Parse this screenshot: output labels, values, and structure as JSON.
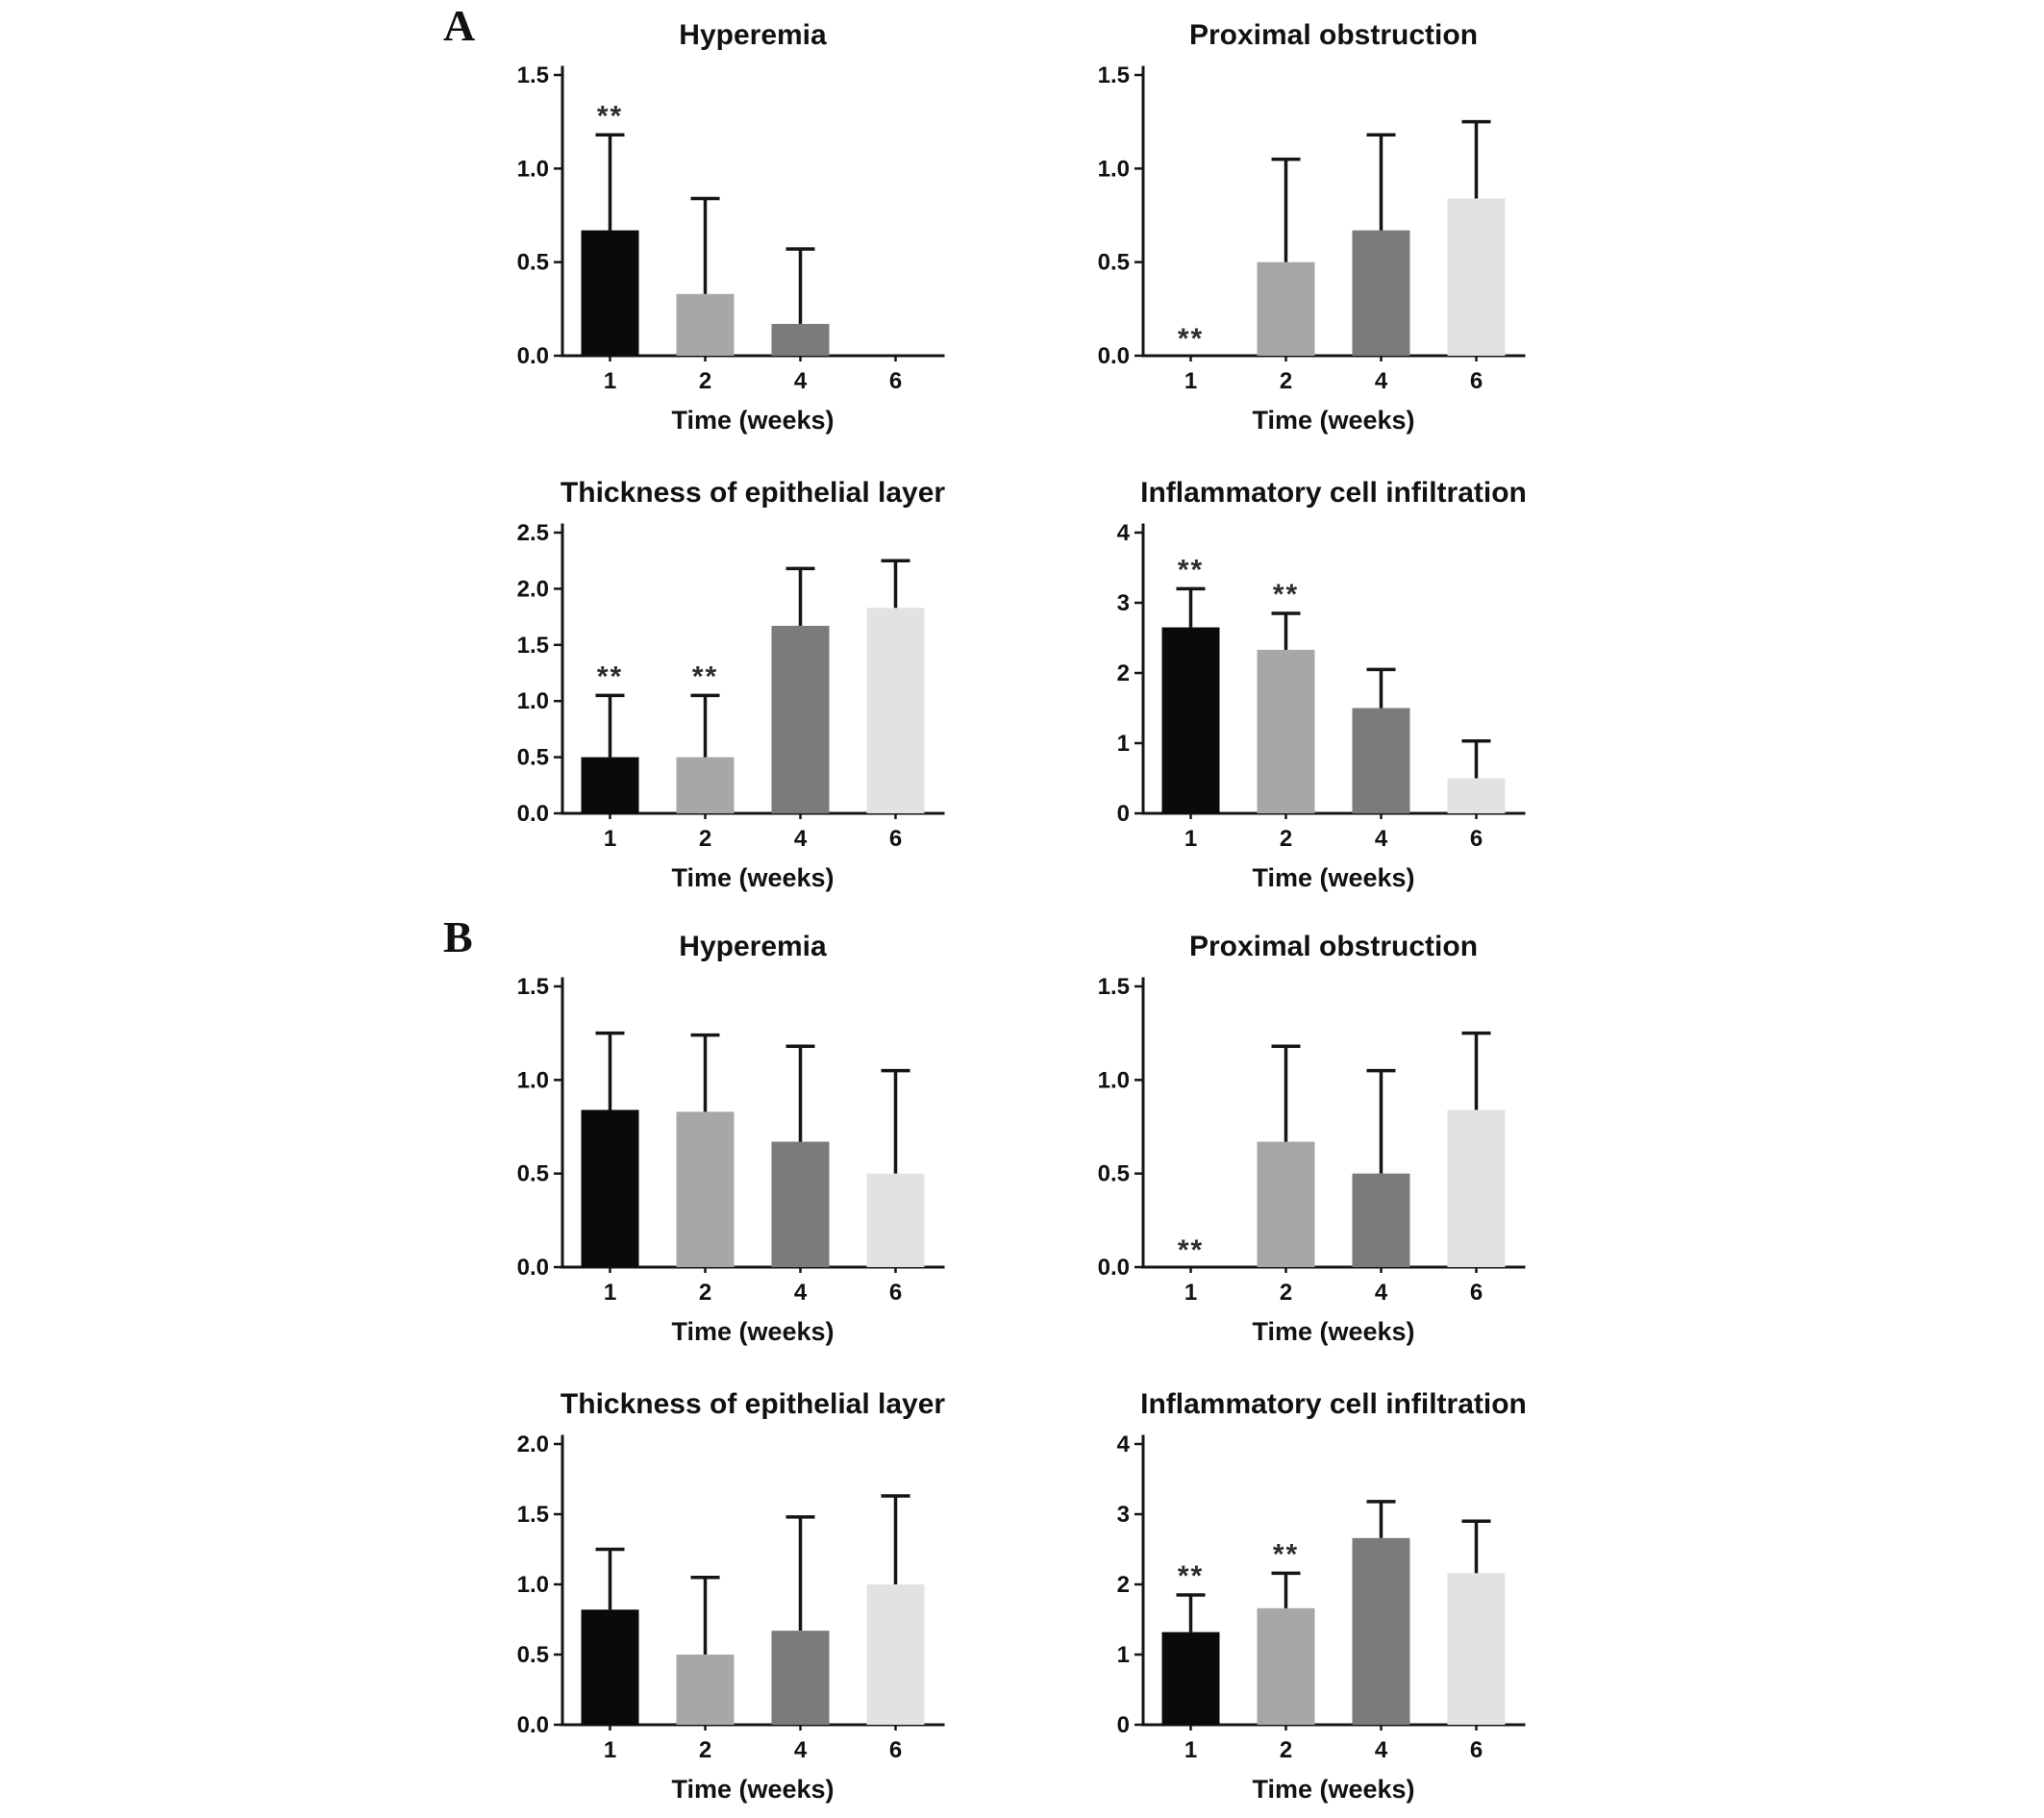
{
  "page": {
    "background": "#ffffff"
  },
  "panels": [
    {
      "label": "A"
    },
    {
      "label": "B"
    }
  ],
  "style": {
    "bar_colors": [
      "#0a0a0a",
      "#a7a7a7",
      "#7b7b7b",
      "#e2e2e2"
    ],
    "axis_color": "#151515",
    "error_bar_color": "#151515",
    "significance_color": "#2e2e2e"
  },
  "chart_data": [
    {
      "id": "a-hyperemia",
      "panel": "A",
      "type": "bar",
      "title": "Hyperemia",
      "xlabel": "Time (weeks)",
      "ylabel": "",
      "categories": [
        "1",
        "2",
        "4",
        "6"
      ],
      "ylim": [
        0,
        1.5
      ],
      "yticks": [
        "0.0",
        "0.5",
        "1.0",
        "1.5"
      ],
      "values": [
        0.67,
        0.33,
        0.17,
        0
      ],
      "errors": [
        0.51,
        0.51,
        0.4,
        0
      ],
      "significance": [
        "**",
        "",
        "",
        ""
      ]
    },
    {
      "id": "a-proximal-obstruction",
      "panel": "A",
      "type": "bar",
      "title": "Proximal obstruction",
      "xlabel": "Time (weeks)",
      "ylabel": "",
      "categories": [
        "1",
        "2",
        "4",
        "6"
      ],
      "ylim": [
        0,
        1.5
      ],
      "yticks": [
        "0.0",
        "0.5",
        "1.0",
        "1.5"
      ],
      "values": [
        0,
        0.5,
        0.67,
        0.84
      ],
      "errors": [
        0,
        0.55,
        0.51,
        0.41
      ],
      "significance": [
        "**",
        "",
        "",
        ""
      ]
    },
    {
      "id": "a-epithelial-thickness",
      "panel": "A",
      "type": "bar",
      "title": "Thickness of epithelial layer",
      "xlabel": "Time (weeks)",
      "ylabel": "",
      "categories": [
        "1",
        "2",
        "4",
        "6"
      ],
      "ylim": [
        0,
        2.5
      ],
      "yticks": [
        "0.0",
        "0.5",
        "1.0",
        "1.5",
        "2.0",
        "2.5"
      ],
      "values": [
        0.5,
        0.5,
        1.67,
        1.83
      ],
      "errors": [
        0.55,
        0.55,
        0.51,
        0.42
      ],
      "significance": [
        "**",
        "**",
        "",
        ""
      ]
    },
    {
      "id": "a-inflammatory-infiltration",
      "panel": "A",
      "type": "bar",
      "title": "Inflammatory cell infiltration",
      "xlabel": "Time (weeks)",
      "ylabel": "",
      "categories": [
        "1",
        "2",
        "4",
        "6"
      ],
      "ylim": [
        0,
        4
      ],
      "yticks": [
        "0",
        "1",
        "2",
        "3",
        "4"
      ],
      "values": [
        2.65,
        2.33,
        1.5,
        0.5
      ],
      "errors": [
        0.55,
        0.52,
        0.55,
        0.53
      ],
      "significance": [
        "**",
        "**",
        "",
        ""
      ]
    },
    {
      "id": "b-hyperemia",
      "panel": "B",
      "type": "bar",
      "title": "Hyperemia",
      "xlabel": "Time (weeks)",
      "ylabel": "",
      "categories": [
        "1",
        "2",
        "4",
        "6"
      ],
      "ylim": [
        0,
        1.5
      ],
      "yticks": [
        "0.0",
        "0.5",
        "1.0",
        "1.5"
      ],
      "values": [
        0.84,
        0.83,
        0.67,
        0.5
      ],
      "errors": [
        0.41,
        0.41,
        0.51,
        0.55
      ],
      "significance": [
        "",
        "",
        "",
        ""
      ]
    },
    {
      "id": "b-proximal-obstruction",
      "panel": "B",
      "type": "bar",
      "title": "Proximal obstruction",
      "xlabel": "Time (weeks)",
      "ylabel": "",
      "categories": [
        "1",
        "2",
        "4",
        "6"
      ],
      "ylim": [
        0,
        1.5
      ],
      "yticks": [
        "0.0",
        "0.5",
        "1.0",
        "1.5"
      ],
      "values": [
        0,
        0.67,
        0.5,
        0.84
      ],
      "errors": [
        0,
        0.51,
        0.55,
        0.41
      ],
      "significance": [
        "**",
        "",
        "",
        ""
      ]
    },
    {
      "id": "b-epithelial-thickness",
      "panel": "B",
      "type": "bar",
      "title": "Thickness of epithelial layer",
      "xlabel": "Time (weeks)",
      "ylabel": "",
      "categories": [
        "1",
        "2",
        "4",
        "6"
      ],
      "ylim": [
        0,
        2
      ],
      "yticks": [
        "0.0",
        "0.5",
        "1.0",
        "1.5",
        "2.0"
      ],
      "values": [
        0.82,
        0.5,
        0.67,
        1.0
      ],
      "errors": [
        0.43,
        0.55,
        0.81,
        0.63
      ],
      "significance": [
        "",
        "",
        "",
        ""
      ]
    },
    {
      "id": "b-inflammatory-infiltration",
      "panel": "B",
      "type": "bar",
      "title": "Inflammatory cell infiltration",
      "xlabel": "Time (weeks)",
      "ylabel": "",
      "categories": [
        "1",
        "2",
        "4",
        "6"
      ],
      "ylim": [
        0,
        4
      ],
      "yticks": [
        "0",
        "1",
        "2",
        "3",
        "4"
      ],
      "values": [
        1.32,
        1.66,
        2.66,
        2.16
      ],
      "errors": [
        0.53,
        0.5,
        0.52,
        0.74
      ],
      "significance": [
        "**",
        "**",
        "",
        ""
      ]
    }
  ]
}
